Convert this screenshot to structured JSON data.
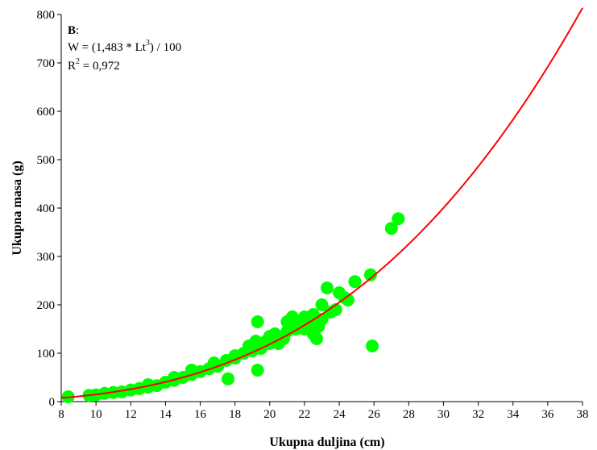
{
  "chart_data": {
    "type": "scatter",
    "title": "",
    "xlabel": "Ukupna duljina (cm)",
    "ylabel": "Ukupna masa (g)",
    "xlim": [
      8,
      38
    ],
    "ylim": [
      0,
      800
    ],
    "x_ticks": [
      "8",
      "10",
      "12",
      "14",
      "16",
      "18",
      "20",
      "22",
      "24",
      "26",
      "28",
      "30",
      "32",
      "34",
      "36",
      "38"
    ],
    "y_ticks": [
      "0",
      "100",
      "200",
      "300",
      "400",
      "500",
      "600",
      "700",
      "800"
    ],
    "grid": false,
    "marker_color": "#00ff00",
    "fit_color": "#ff0000",
    "annotation": {
      "panel": "B",
      "panel_suffix": ":",
      "equation_prefix": "W = (1,483 * Lt",
      "equation_exp": "3",
      "equation_suffix": ") / 100",
      "r2_prefix": "R",
      "r2_exp": "2",
      "r2_suffix": " = 0,972"
    },
    "fit": {
      "a": 0.01483,
      "b": 3,
      "x_from": 8,
      "x_to": 38
    },
    "points": [
      [
        8.4,
        10
      ],
      [
        9.6,
        13
      ],
      [
        10.0,
        14
      ],
      [
        10.5,
        17
      ],
      [
        11.0,
        19
      ],
      [
        11.5,
        20
      ],
      [
        12.0,
        24
      ],
      [
        12.5,
        27
      ],
      [
        13.0,
        30
      ],
      [
        13.0,
        35
      ],
      [
        13.5,
        33
      ],
      [
        14.0,
        40
      ],
      [
        14.5,
        44
      ],
      [
        14.5,
        50
      ],
      [
        15.0,
        50
      ],
      [
        15.5,
        56
      ],
      [
        15.5,
        65
      ],
      [
        16.0,
        62
      ],
      [
        16.5,
        68
      ],
      [
        16.8,
        80
      ],
      [
        17.0,
        73
      ],
      [
        17.5,
        85
      ],
      [
        17.6,
        47
      ],
      [
        18.0,
        90
      ],
      [
        18.0,
        95
      ],
      [
        18.5,
        100
      ],
      [
        18.8,
        115
      ],
      [
        19.0,
        105
      ],
      [
        19.2,
        125
      ],
      [
        19.3,
        65
      ],
      [
        19.3,
        165
      ],
      [
        19.5,
        110
      ],
      [
        19.8,
        125
      ],
      [
        20.0,
        120
      ],
      [
        20.0,
        135
      ],
      [
        20.3,
        140
      ],
      [
        20.5,
        120
      ],
      [
        20.8,
        130
      ],
      [
        21.0,
        145
      ],
      [
        21.0,
        165
      ],
      [
        21.3,
        175
      ],
      [
        21.5,
        150
      ],
      [
        21.8,
        160
      ],
      [
        22.0,
        150
      ],
      [
        22.0,
        175
      ],
      [
        22.3,
        165
      ],
      [
        22.5,
        180
      ],
      [
        22.5,
        140
      ],
      [
        22.7,
        130
      ],
      [
        22.8,
        155
      ],
      [
        23.0,
        170
      ],
      [
        23.0,
        200
      ],
      [
        23.3,
        235
      ],
      [
        23.5,
        185
      ],
      [
        23.8,
        190
      ],
      [
        24.0,
        225
      ],
      [
        24.3,
        215
      ],
      [
        24.5,
        210
      ],
      [
        24.9,
        248
      ],
      [
        25.8,
        262
      ],
      [
        25.9,
        115
      ],
      [
        27.0,
        358
      ],
      [
        27.4,
        378
      ]
    ]
  }
}
